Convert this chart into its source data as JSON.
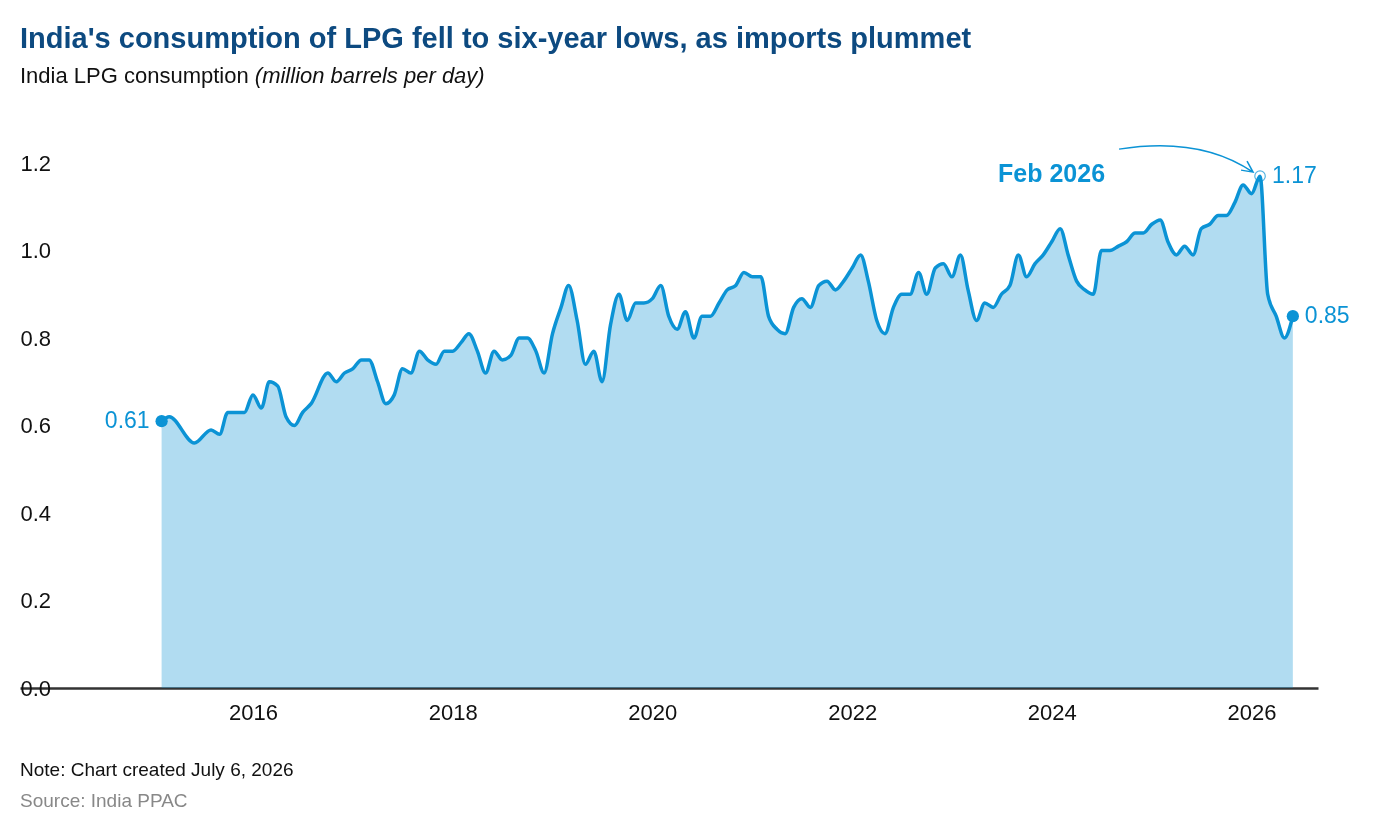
{
  "chart_data": {
    "type": "area",
    "title": "India's consumption of LPG fell to six-year lows, as imports plummet",
    "subtitle": "India LPG consumption",
    "ylabel": "(million barrels per day)",
    "annotations": [
      {
        "text": "Feb 2026",
        "x": "2026-02",
        "y": 1.17
      },
      "Note: Chart created July 6, 2026",
      "Source: India PPAC"
    ],
    "xlim": [
      "2013-09",
      "2026-09"
    ],
    "xticks": [
      {
        "value": "2016-01",
        "label": "2016"
      },
      {
        "value": "2018-01",
        "label": "2018"
      },
      {
        "value": "2020-01",
        "label": "2020"
      },
      {
        "value": "2022-01",
        "label": "2022"
      },
      {
        "value": "2024-01",
        "label": "2024"
      },
      {
        "value": "2026-01",
        "label": "2026"
      }
    ],
    "ylim": [
      0,
      1.2
    ],
    "yticks": [
      {
        "value": 0,
        "label": "0.0"
      },
      {
        "value": 0.2,
        "label": "0.2"
      },
      {
        "value": 0.4,
        "label": "0.4"
      },
      {
        "value": 0.6,
        "label": "0.6"
      },
      {
        "value": 0.8,
        "label": "0.8"
      },
      {
        "value": 1,
        "label": "1.0"
      },
      {
        "value": 1.2,
        "label": "1.2"
      }
    ],
    "x": [
      "2015-02",
      "2015-03",
      "2015-06",
      "2015-08",
      "2015-09",
      "2015-10",
      "2015-11",
      "2015-12",
      "2016-01",
      "2016-02",
      "2016-03",
      "2016-04",
      "2016-05",
      "2016-06",
      "2016-07",
      "2016-08",
      "2016-10",
      "2016-11",
      "2016-12",
      "2017-01",
      "2017-02",
      "2017-03",
      "2017-04",
      "2017-05",
      "2017-06",
      "2017-07",
      "2017-08",
      "2017-09",
      "2017-10",
      "2017-11",
      "2017-12",
      "2018-01",
      "2018-02",
      "2018-03",
      "2018-04",
      "2018-05",
      "2018-06",
      "2018-07",
      "2018-08",
      "2018-09",
      "2018-10",
      "2018-11",
      "2018-12",
      "2019-01",
      "2019-02",
      "2019-03",
      "2019-04",
      "2019-05",
      "2019-06",
      "2019-07",
      "2019-08",
      "2019-09",
      "2019-10",
      "2019-11",
      "2019-12",
      "2020-01",
      "2020-02",
      "2020-03",
      "2020-04",
      "2020-05",
      "2020-06",
      "2020-07",
      "2020-08",
      "2020-09",
      "2020-10",
      "2020-11",
      "2020-12",
      "2021-01",
      "2021-02",
      "2021-03",
      "2021-04",
      "2021-05",
      "2021-06",
      "2021-07",
      "2021-08",
      "2021-09",
      "2021-10",
      "2021-11",
      "2021-12",
      "2022-01",
      "2022-02",
      "2022-03",
      "2022-04",
      "2022-05",
      "2022-06",
      "2022-07",
      "2022-08",
      "2022-09",
      "2022-10",
      "2022-11",
      "2022-12",
      "2023-01",
      "2023-02",
      "2023-03",
      "2023-04",
      "2023-05",
      "2023-06",
      "2023-07",
      "2023-08",
      "2023-09",
      "2023-10",
      "2023-11",
      "2023-12",
      "2024-01",
      "2024-02",
      "2024-03",
      "2024-04",
      "2024-05",
      "2024-06",
      "2024-07",
      "2024-08",
      "2024-09",
      "2024-10",
      "2024-11",
      "2024-12",
      "2025-01",
      "2025-02",
      "2025-03",
      "2025-04",
      "2025-05",
      "2025-06",
      "2025-07",
      "2025-08",
      "2025-09",
      "2025-10",
      "2025-11",
      "2025-12",
      "2026-01",
      "2026-02",
      "2026-03",
      "2026-04",
      "2026-05",
      "2026-06"
    ],
    "series": [
      {
        "color": "#0b93d5",
        "values": [
          0.61,
          0.62,
          0.56,
          0.59,
          0.58,
          0.63,
          0.63,
          0.63,
          0.67,
          0.64,
          0.7,
          0.69,
          0.62,
          0.6,
          0.63,
          0.65,
          0.72,
          0.7,
          0.72,
          0.73,
          0.75,
          0.75,
          0.7,
          0.65,
          0.67,
          0.73,
          0.72,
          0.77,
          0.75,
          0.74,
          0.77,
          0.77,
          0.79,
          0.81,
          0.77,
          0.72,
          0.77,
          0.75,
          0.76,
          0.8,
          0.8,
          0.77,
          0.72,
          0.81,
          0.87,
          0.92,
          0.84,
          0.74,
          0.77,
          0.7,
          0.83,
          0.9,
          0.84,
          0.88,
          0.88,
          0.89,
          0.92,
          0.85,
          0.82,
          0.86,
          0.8,
          0.85,
          0.85,
          0.88,
          0.91,
          0.92,
          0.95,
          0.94,
          0.94,
          0.85,
          0.82,
          0.81,
          0.87,
          0.89,
          0.87,
          0.92,
          0.93,
          0.91,
          0.93,
          0.96,
          0.99,
          0.93,
          0.84,
          0.81,
          0.87,
          0.9,
          0.9,
          0.95,
          0.9,
          0.96,
          0.97,
          0.94,
          0.99,
          0.91,
          0.84,
          0.88,
          0.87,
          0.9,
          0.92,
          0.99,
          0.94,
          0.97,
          0.99,
          1.02,
          1.05,
          0.99,
          0.93,
          0.91,
          0.9,
          1.0,
          1.0,
          1.01,
          1.02,
          1.04,
          1.04,
          1.06,
          1.07,
          1.02,
          0.99,
          1.01,
          0.99,
          1.05,
          1.06,
          1.08,
          1.08,
          1.11,
          1.15,
          1.13,
          1.17,
          0.9,
          0.85,
          0.8,
          0.85
        ],
        "value_labels": [
          "0.61",
          null,
          null,
          null,
          null,
          null,
          null,
          null,
          null,
          null,
          null,
          null,
          null,
          null,
          null,
          null,
          null,
          null,
          null,
          null,
          null,
          null,
          null,
          null,
          null,
          null,
          null,
          null,
          null,
          null,
          null,
          null,
          null,
          null,
          null,
          null,
          null,
          null,
          null,
          null,
          null,
          null,
          null,
          null,
          null,
          null,
          null,
          null,
          null,
          null,
          null,
          null,
          null,
          null,
          null,
          null,
          null,
          null,
          null,
          null,
          null,
          null,
          null,
          null,
          null,
          null,
          null,
          null,
          null,
          null,
          null,
          null,
          null,
          null,
          null,
          null,
          null,
          null,
          null,
          null,
          null,
          null,
          null,
          null,
          null,
          null,
          null,
          null,
          null,
          null,
          null,
          null,
          null,
          null,
          null,
          null,
          null,
          null,
          null,
          null,
          null,
          null,
          null,
          null,
          null,
          null,
          null,
          null,
          null,
          null,
          null,
          null,
          null,
          null,
          null,
          null,
          null,
          null,
          null,
          null,
          null,
          null,
          null,
          null,
          null,
          null,
          null,
          null,
          "1.17",
          null,
          null,
          null,
          "0.85"
        ]
      }
    ]
  }
}
